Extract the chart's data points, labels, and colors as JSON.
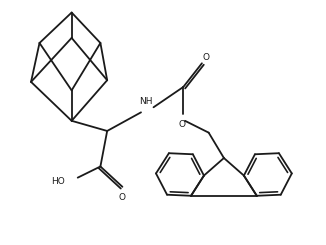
{
  "bg_color": "#ffffff",
  "line_color": "#1a1a1a",
  "line_width": 1.3,
  "fig_width": 3.26,
  "fig_height": 2.45,
  "dpi": 100,
  "xlim": [
    0,
    9.5
  ],
  "ylim": [
    0,
    7.2
  ]
}
